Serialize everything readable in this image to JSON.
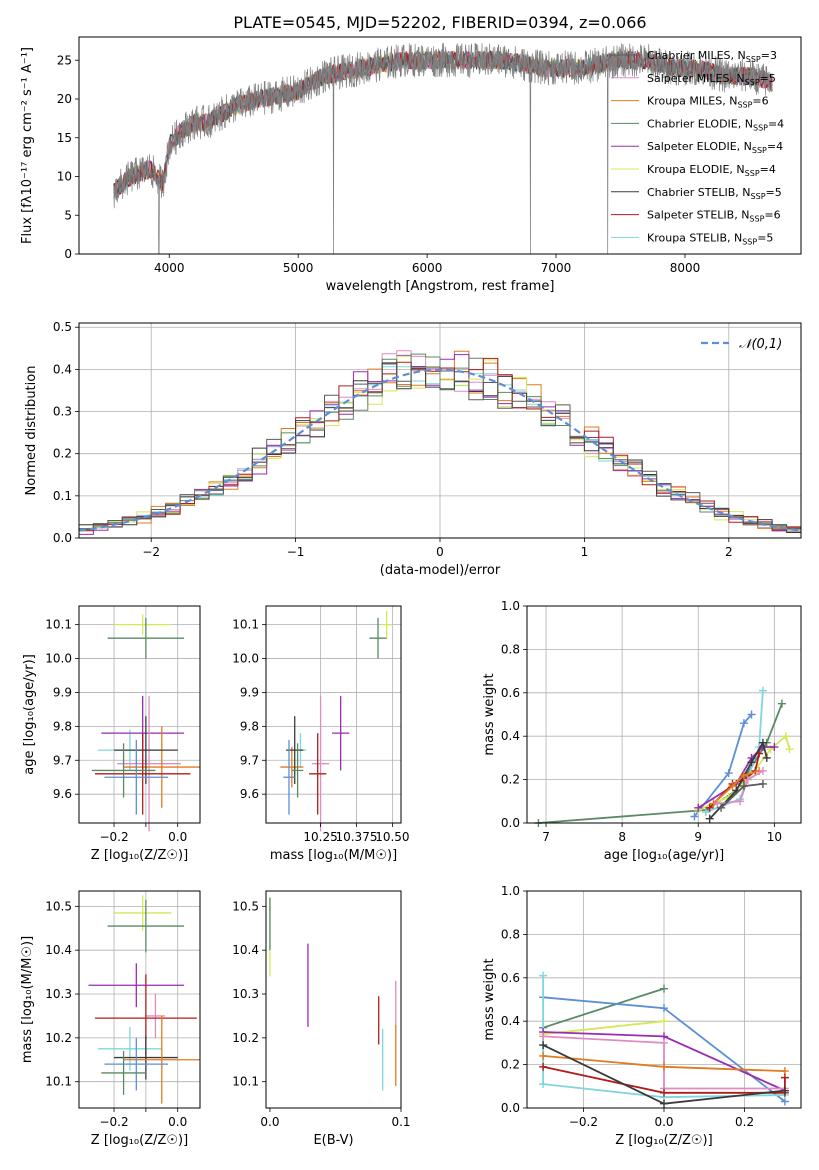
{
  "title": "PLATE=0545, MJD=52202, FIBERID=0394, z=0.066",
  "series_styles": [
    {
      "name": "Chabrier MILES, N_SSP=3",
      "color": "#5b5b5b"
    },
    {
      "name": "Salpeter MILES, N_SSP=5",
      "color": "#e08bc4"
    },
    {
      "name": "Kroupa MILES, N_SSP=6",
      "color": "#e07b1f"
    },
    {
      "name": "Chabrier ELODIE, N_SSP=4",
      "color": "#5a8a64"
    },
    {
      "name": "Salpeter ELODIE, N_SSP=4",
      "color": "#9a2bb2"
    },
    {
      "name": "Kroupa ELODIE, N_SSP=4",
      "color": "#d4e85a"
    },
    {
      "name": "Chabrier STELIB, N_SSP=5",
      "color": "#3a3a3a"
    },
    {
      "name": "Salpeter STELIB, N_SSP=6",
      "color": "#b01c1c"
    },
    {
      "name": "Kroupa STELIB, N_SSP=5",
      "color": "#7fd6dc"
    }
  ],
  "chart_data": [
    {
      "id": "spectrum",
      "type": "line",
      "xlabel": "wavelength [Angstrom, rest frame]",
      "ylabel": "Flux [fλ10⁻¹⁷ erg cm⁻² s⁻¹ A⁻¹]",
      "xlim": [
        3300,
        8900
      ],
      "ylim": [
        0,
        28
      ],
      "xticks": [
        4000,
        5000,
        6000,
        7000,
        8000
      ],
      "yticks": [
        0,
        5,
        10,
        15,
        20,
        25
      ],
      "grid": false,
      "legend": "right",
      "legend_entries": [
        "Chabrier MILES, N_SSP=3",
        "Salpeter MILES, N_SSP=5",
        "Kroupa MILES, N_SSP=6",
        "Chabrier ELODIE, N_SSP=4",
        "Salpeter ELODIE, N_SSP=4",
        "Kroupa ELODIE, N_SSP=4",
        "Chabrier STELIB, N_SSP=5",
        "Salpeter STELIB, N_SSP=6",
        "Kroupa STELIB, N_SSP=5"
      ],
      "continuum": {
        "x": [
          3570,
          3700,
          3850,
          3950,
          4000,
          4100,
          4200,
          4300,
          4500,
          4700,
          5000,
          5200,
          5500,
          5800,
          6000,
          6300,
          6600,
          6900,
          7200,
          7500,
          7700,
          7900,
          8100,
          8300,
          8500,
          8700
        ],
        "y": [
          8,
          10,
          11,
          9,
          14,
          16,
          17,
          17,
          19,
          20,
          21,
          23,
          24,
          25,
          25,
          25,
          25,
          24,
          24,
          25,
          25,
          24,
          24,
          23,
          23,
          22
        ]
      },
      "data_range": [
        3570,
        8680
      ]
    },
    {
      "id": "residuals",
      "type": "histogram",
      "xlabel": "(data-model)/error",
      "ylabel": "Normed distribution",
      "xlim": [
        -2.5,
        2.5
      ],
      "ylim": [
        0,
        0.51
      ],
      "xticks": [
        -2,
        -1,
        0,
        1,
        2
      ],
      "yticks": [
        0.0,
        0.1,
        0.2,
        0.3,
        0.4,
        0.5
      ],
      "grid": true,
      "legend": "top-right",
      "reference": {
        "name": "𝒩(0,1)",
        "style": "dashed",
        "color": "#5b8fd6"
      },
      "bin_width": 0.1
    },
    {
      "id": "age_vs_Z",
      "type": "errorbar",
      "xlabel": "Z [log₁₀(Z/Z☉)]",
      "ylabel": "age  [log₁₀(age/yr)]",
      "xlim": [
        -0.31,
        0.07
      ],
      "ylim": [
        9.515,
        10.155
      ],
      "xticks": [
        -0.2,
        -0.1,
        0.0
      ],
      "xticklabels": [
        "−0.2",
        "",
        "0.0"
      ],
      "yticks": [
        9.6,
        9.7,
        9.8,
        9.9,
        10.0,
        10.1
      ],
      "grid": true,
      "points": [
        {
          "x": -0.11,
          "y": 10.1,
          "xerr": 0.09,
          "yerr": 0.03,
          "color": "#d4e85a"
        },
        {
          "x": -0.1,
          "y": 10.06,
          "xerr": 0.12,
          "yerr": 0.06,
          "color": "#5a8a64"
        },
        {
          "x": -0.15,
          "y": 9.73,
          "xerr": 0.1,
          "yerr": 0.06,
          "color": "#7fd6dc"
        },
        {
          "x": -0.11,
          "y": 9.78,
          "xerr": 0.13,
          "yerr": 0.11,
          "color": "#9a2bb2"
        },
        {
          "x": -0.09,
          "y": 9.69,
          "xerr": 0.1,
          "yerr": 0.2,
          "color": "#e08bc4"
        },
        {
          "x": -0.05,
          "y": 9.68,
          "xerr": 0.12,
          "yerr": 0.12,
          "color": "#e07b1f"
        },
        {
          "x": -0.1,
          "y": 9.73,
          "xerr": 0.1,
          "yerr": 0.1,
          "color": "#3a3a3a"
        },
        {
          "x": -0.11,
          "y": 9.66,
          "xerr": 0.15,
          "yerr": 0.12,
          "color": "#b01c1c"
        },
        {
          "x": -0.13,
          "y": 9.65,
          "xerr": 0.1,
          "yerr": 0.11,
          "color": "#5b8fd6"
        },
        {
          "x": -0.17,
          "y": 9.67,
          "xerr": 0.1,
          "yerr": 0.08,
          "color": "#5a8a64"
        }
      ]
    },
    {
      "id": "age_vs_mass",
      "type": "errorbar",
      "xlabel": "mass [log₁₀(M/M☉)]",
      "ylabel": "",
      "xlim": [
        10.06,
        10.53
      ],
      "ylim": [
        9.515,
        10.155
      ],
      "xticks": [
        10.25,
        10.375,
        10.5
      ],
      "xticklabels": [
        "10.25",
        "10.375",
        "10.50"
      ],
      "yticks": [
        9.6,
        9.7,
        9.8,
        9.9,
        10.0,
        10.1
      ],
      "grid": true,
      "points": [
        {
          "x": 10.48,
          "y": 10.1,
          "xerr": 0.02,
          "yerr": 0.04,
          "color": "#d4e85a"
        },
        {
          "x": 10.45,
          "y": 10.06,
          "xerr": 0.03,
          "yerr": 0.06,
          "color": "#5a8a64"
        },
        {
          "x": 10.32,
          "y": 9.78,
          "xerr": 0.03,
          "yerr": 0.11,
          "color": "#9a2bb2"
        },
        {
          "x": 10.18,
          "y": 9.73,
          "xerr": 0.02,
          "yerr": 0.05,
          "color": "#7fd6dc"
        },
        {
          "x": 10.15,
          "y": 9.68,
          "xerr": 0.04,
          "yerr": 0.06,
          "color": "#e07b1f"
        },
        {
          "x": 10.25,
          "y": 9.69,
          "xerr": 0.03,
          "yerr": 0.2,
          "color": "#e08bc4"
        },
        {
          "x": 10.16,
          "y": 9.73,
          "xerr": 0.03,
          "yerr": 0.1,
          "color": "#3a3a3a"
        },
        {
          "x": 10.24,
          "y": 9.66,
          "xerr": 0.03,
          "yerr": 0.12,
          "color": "#b01c1c"
        },
        {
          "x": 10.14,
          "y": 9.65,
          "xerr": 0.02,
          "yerr": 0.11,
          "color": "#5b8fd6"
        },
        {
          "x": 10.17,
          "y": 9.67,
          "xerr": 0.02,
          "yerr": 0.08,
          "color": "#5a8a64"
        }
      ]
    },
    {
      "id": "weight_vs_age",
      "type": "line",
      "xlabel": "age  [log₁₀(age/yr)]",
      "ylabel": "mass weight",
      "xlim": [
        6.75,
        10.35
      ],
      "ylim": [
        0,
        1.0
      ],
      "xticks": [
        7,
        8,
        9,
        10
      ],
      "yticks": [
        0.0,
        0.2,
        0.4,
        0.6,
        0.8,
        1.0
      ],
      "grid": true,
      "series": [
        {
          "color": "#5a8a64",
          "x": [
            6.9,
            9.1,
            9.5,
            9.9,
            10.1
          ],
          "y": [
            0.0,
            0.06,
            0.15,
            0.37,
            0.55
          ]
        },
        {
          "color": "#5b8fd6",
          "x": [
            8.95,
            9.4,
            9.6,
            9.7
          ],
          "y": [
            0.03,
            0.23,
            0.46,
            0.5
          ]
        },
        {
          "color": "#7fd6dc",
          "x": [
            9.1,
            9.55,
            9.8,
            9.85
          ],
          "y": [
            0.05,
            0.11,
            0.35,
            0.61
          ]
        },
        {
          "color": "#d4e85a",
          "x": [
            9.0,
            9.4,
            9.65,
            9.95,
            10.15,
            10.2
          ],
          "y": [
            0.06,
            0.12,
            0.2,
            0.34,
            0.4,
            0.34
          ]
        },
        {
          "color": "#9a2bb2",
          "x": [
            9.0,
            9.5,
            9.7,
            9.85,
            10.0
          ],
          "y": [
            0.07,
            0.18,
            0.3,
            0.35,
            0.35
          ]
        },
        {
          "color": "#b01c1c",
          "x": [
            9.15,
            9.45,
            9.6,
            9.75,
            9.8
          ],
          "y": [
            0.07,
            0.18,
            0.2,
            0.24,
            0.32
          ]
        },
        {
          "color": "#3a3a3a",
          "x": [
            9.15,
            9.5,
            9.7,
            9.85,
            9.9
          ],
          "y": [
            0.02,
            0.15,
            0.28,
            0.37,
            0.3
          ]
        },
        {
          "color": "#e07b1f",
          "x": [
            9.2,
            9.45,
            9.6,
            9.8
          ],
          "y": [
            0.09,
            0.17,
            0.22,
            0.24
          ]
        },
        {
          "color": "#e08bc4",
          "x": [
            9.25,
            9.55,
            9.65,
            9.85
          ],
          "y": [
            0.09,
            0.1,
            0.2,
            0.24
          ]
        },
        {
          "color": "#5b5b5b",
          "x": [
            9.3,
            9.6,
            9.85
          ],
          "y": [
            0.07,
            0.17,
            0.18
          ]
        }
      ]
    },
    {
      "id": "mass_vs_Z",
      "type": "errorbar",
      "xlabel": "Z [log₁₀(Z/Z☉)]",
      "ylabel": "mass [log₁₀(M/M☉)]",
      "xlim": [
        -0.31,
        0.07
      ],
      "ylim": [
        10.04,
        10.535
      ],
      "xticks": [
        -0.2,
        -0.1,
        0.0
      ],
      "xticklabels": [
        "−0.2",
        "",
        "0.0"
      ],
      "yticks": [
        10.1,
        10.2,
        10.3,
        10.4,
        10.5
      ],
      "grid": true,
      "points": [
        {
          "x": -0.11,
          "y": 10.485,
          "xerr": 0.09,
          "yerr": 0.04,
          "color": "#d4e85a"
        },
        {
          "x": -0.1,
          "y": 10.455,
          "xerr": 0.12,
          "yerr": 0.06,
          "color": "#5a8a64"
        },
        {
          "x": -0.13,
          "y": 10.32,
          "xerr": 0.15,
          "yerr": 0.05,
          "color": "#9a2bb2"
        },
        {
          "x": -0.07,
          "y": 10.25,
          "xerr": 0.03,
          "yerr": 0.05,
          "color": "#e08bc4"
        },
        {
          "x": -0.1,
          "y": 10.245,
          "xerr": 0.16,
          "yerr": 0.1,
          "color": "#b01c1c"
        },
        {
          "x": -0.15,
          "y": 10.175,
          "xerr": 0.1,
          "yerr": 0.05,
          "color": "#7fd6dc"
        },
        {
          "x": -0.1,
          "y": 10.155,
          "xerr": 0.1,
          "yerr": 0.05,
          "color": "#3a3a3a"
        },
        {
          "x": -0.05,
          "y": 10.15,
          "xerr": 0.12,
          "yerr": 0.1,
          "color": "#e07b1f"
        },
        {
          "x": -0.13,
          "y": 10.14,
          "xerr": 0.1,
          "yerr": 0.06,
          "color": "#5b8fd6"
        },
        {
          "x": -0.17,
          "y": 10.12,
          "xerr": 0.07,
          "yerr": 0.05,
          "color": "#5a8a64"
        }
      ]
    },
    {
      "id": "mass_vs_ebv",
      "type": "errorbar",
      "xlabel": "E(B-V)",
      "ylabel": "",
      "xlim": [
        -0.003,
        0.1
      ],
      "ylim": [
        10.04,
        10.535
      ],
      "xticks": [
        0.0,
        0.1
      ],
      "yticks": [
        10.1,
        10.2,
        10.3,
        10.4,
        10.5
      ],
      "grid": false,
      "points": [
        {
          "x": 0.0,
          "y": 10.43,
          "xerr": 0.0,
          "yerr": 0.09,
          "color": "#d4e85a"
        },
        {
          "x": 0.0,
          "y": 10.46,
          "xerr": 0.0,
          "yerr": 0.06,
          "color": "#5a8a64"
        },
        {
          "x": 0.029,
          "y": 10.32,
          "xerr": 0.0,
          "yerr": 0.095,
          "color": "#9a2bb2"
        },
        {
          "x": 0.083,
          "y": 10.24,
          "xerr": 0.0,
          "yerr": 0.055,
          "color": "#b01c1c"
        },
        {
          "x": 0.086,
          "y": 10.15,
          "xerr": 0.0,
          "yerr": 0.07,
          "color": "#7fd6dc"
        },
        {
          "x": 0.096,
          "y": 10.28,
          "xerr": 0.0,
          "yerr": 0.05,
          "color": "#e08bc4"
        },
        {
          "x": 0.096,
          "y": 10.16,
          "xerr": 0.0,
          "yerr": 0.07,
          "color": "#e07b1f"
        }
      ]
    },
    {
      "id": "weight_vs_Z",
      "type": "line",
      "xlabel": "Z [log₁₀(Z/Z☉)]",
      "ylabel": "mass weight",
      "xlim": [
        -0.34,
        0.34
      ],
      "ylim": [
        0,
        1.0
      ],
      "xticks": [
        -0.2,
        0.0,
        0.2
      ],
      "xticklabels": [
        "−0.2",
        "0.0",
        "0.2"
      ],
      "yticks": [
        0.0,
        0.2,
        0.4,
        0.6,
        0.8,
        1.0
      ],
      "grid": true,
      "series": [
        {
          "color": "#5a8a64",
          "x": [
            -0.3,
            0.0
          ],
          "y": [
            0.37,
            0.55
          ]
        },
        {
          "color": "#5b8fd6",
          "x": [
            -0.3,
            0.0,
            0.3
          ],
          "y": [
            0.51,
            0.46,
            0.03
          ]
        },
        {
          "color": "#7fd6dc",
          "x": [
            -0.3,
            -0.3,
            0.0,
            0.3
          ],
          "y": [
            0.61,
            0.11,
            0.05,
            0.06
          ]
        },
        {
          "color": "#d4e85a",
          "x": [
            -0.3,
            0.0
          ],
          "y": [
            0.34,
            0.4
          ]
        },
        {
          "color": "#9a2bb2",
          "x": [
            -0.3,
            0.0,
            0.3
          ],
          "y": [
            0.35,
            0.33,
            0.08
          ]
        },
        {
          "color": "#e08bc4",
          "x": [
            -0.3,
            0.0,
            0.0,
            0.3
          ],
          "y": [
            0.33,
            0.3,
            0.09,
            0.09
          ]
        },
        {
          "color": "#e07b1f",
          "x": [
            -0.3,
            0.0,
            0.3
          ],
          "y": [
            0.24,
            0.19,
            0.17
          ]
        },
        {
          "color": "#b01c1c",
          "x": [
            -0.3,
            0.0,
            0.3,
            0.3
          ],
          "y": [
            0.19,
            0.07,
            0.07,
            0.14
          ]
        },
        {
          "color": "#3a3a3a",
          "x": [
            -0.3,
            0.0,
            0.3
          ],
          "y": [
            0.29,
            0.02,
            0.08
          ]
        }
      ]
    }
  ]
}
